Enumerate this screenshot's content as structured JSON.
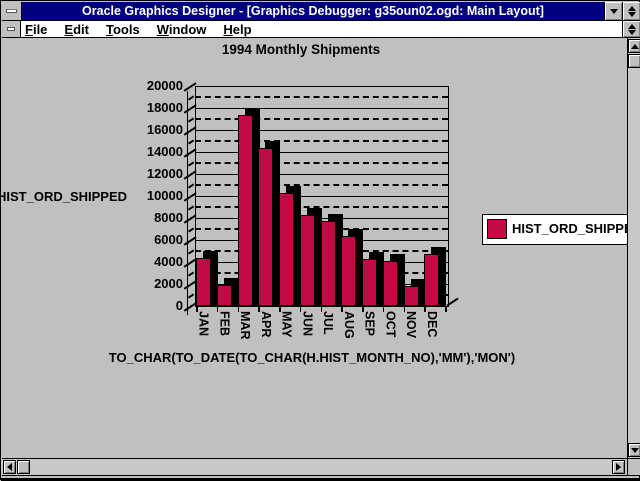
{
  "window": {
    "title": "Oracle Graphics Designer - [Graphics Debugger: g35oun02.ogd: Main Layout]",
    "titlebar_color": "#000080",
    "icons": {
      "control_menu": "control-menu-box",
      "minimize": "down-triangle",
      "restore": "up-down-triangles",
      "child_control_menu": "small-control-menu-box",
      "child_restore": "up-down-triangles"
    }
  },
  "menu": {
    "items": [
      {
        "label": "File"
      },
      {
        "label": "Edit"
      },
      {
        "label": "Tools"
      },
      {
        "label": "Window"
      },
      {
        "label": "Help"
      }
    ]
  },
  "chart": {
    "title": "1994 Monthly Shipments",
    "y_axis_label": "HIST_ORD_SHIPPED",
    "x_axis_label": "TO_CHAR(TO_DATE(TO_CHAR(H.HIST_MONTH_NO),'MM'),'MON')",
    "legend": {
      "label": "HIST_ORD_SHIPPED",
      "swatch_color": "#c40a45"
    }
  },
  "chart_data": {
    "type": "bar",
    "title": "1994 Monthly Shipments",
    "categories": [
      "JAN",
      "FEB",
      "MAR",
      "APR",
      "MAY",
      "JUN",
      "JUL",
      "AUG",
      "SEP",
      "OCT",
      "NOV",
      "DEC"
    ],
    "series": [
      {
        "name": "HIST_ORD_SHIPPED",
        "values": [
          4400,
          1900,
          17400,
          14400,
          10300,
          8300,
          7700,
          6400,
          4300,
          4100,
          1800,
          4700
        ]
      }
    ],
    "xlabel": "TO_CHAR(TO_DATE(TO_CHAR(H.HIST_MONTH_NO),'MM'),'MON')",
    "ylabel": "HIST_ORD_SHIPPED",
    "ylim": [
      0,
      20000
    ],
    "ytick_step": 2000,
    "minor_grid_step": 1000,
    "grid": true,
    "grid_style": "solid-major-dashed-minor",
    "legend_position": "right",
    "bar_color": "#c40a45",
    "bar_depth_color": "#000000",
    "style": "3d-extruded"
  },
  "scrollbars": {
    "vertical": {
      "up_icon": "up-triangle",
      "down_icon": "down-triangle"
    },
    "horizontal": {
      "left_icon": "left-triangle",
      "right_icon": "right-triangle"
    }
  },
  "colors": {
    "window_bg": "#c0c0c0",
    "menubar_bg": "#ffffff",
    "titlebar_bg": "#000080",
    "titlebar_text": "#ffffff",
    "chart_text": "#000000"
  }
}
